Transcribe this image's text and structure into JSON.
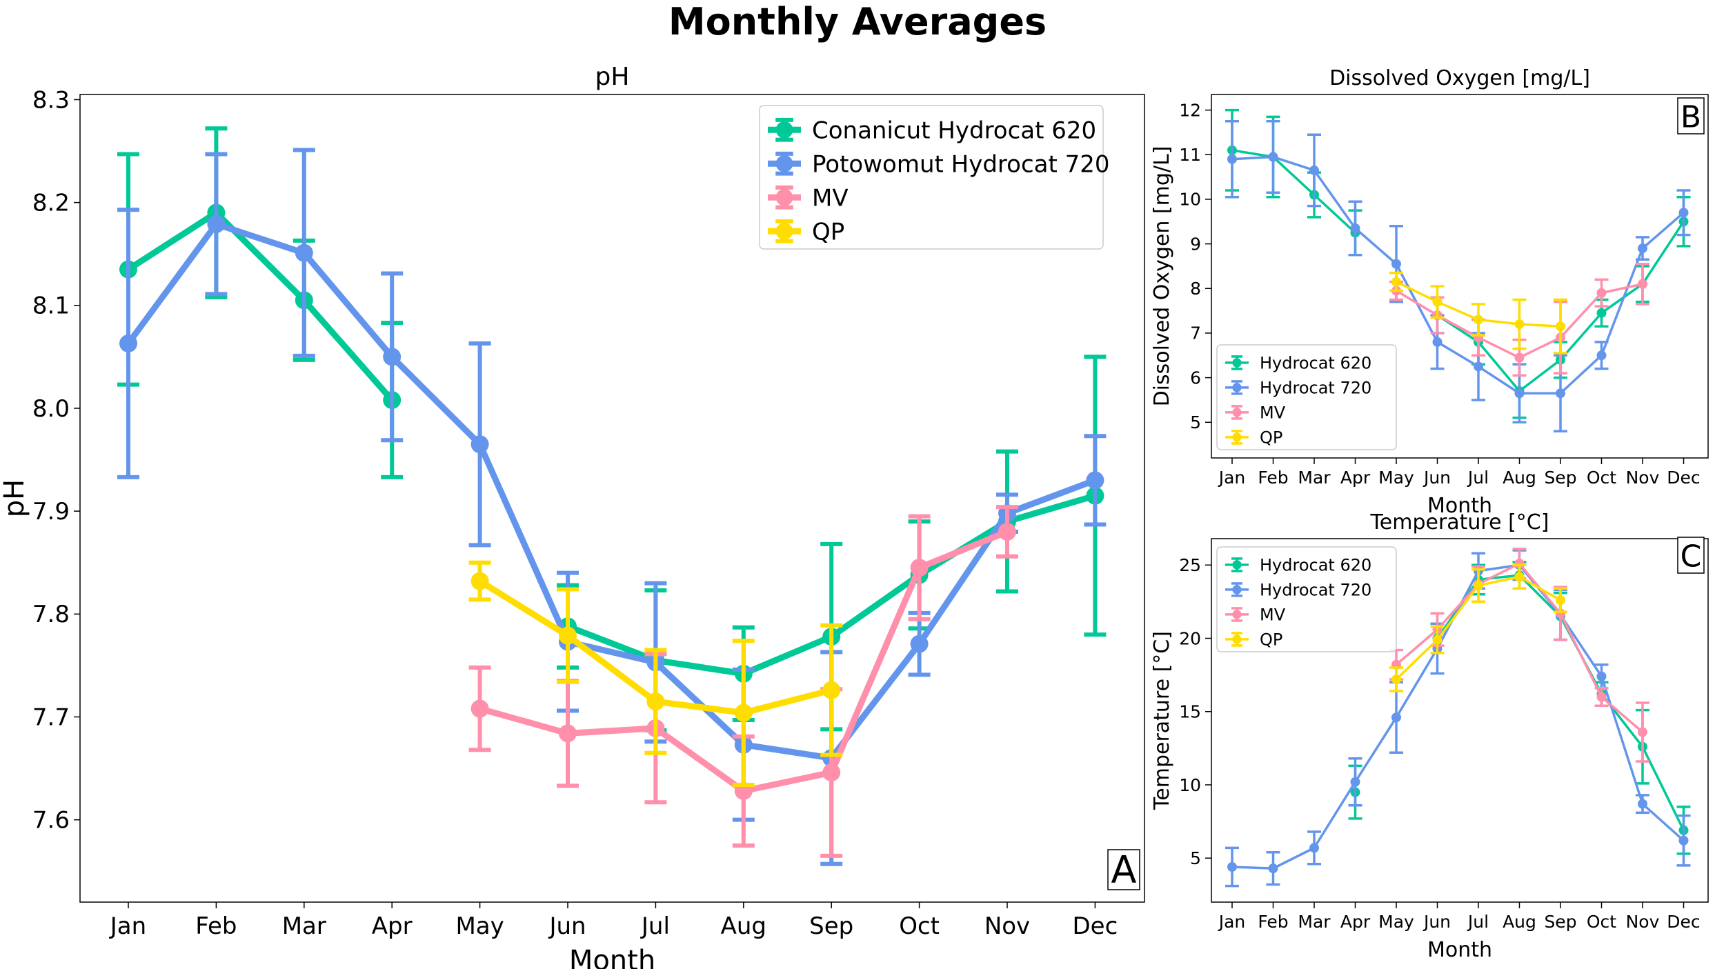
{
  "figure": {
    "title": "Monthly Averages"
  },
  "colors": {
    "Conanicut Hydrocat 620": "#00c896",
    "Potowomut Hydrocat 720": "#6495ed",
    "MV": "#ff8fab",
    "QP": "#ffdd00"
  },
  "chart_data": [
    {
      "id": "A",
      "type": "line",
      "title": "pH",
      "xlabel": "Month",
      "ylabel": "pH",
      "panel_label": "A",
      "ylim": [
        7.52,
        8.305
      ],
      "yticks": [
        "7.6",
        "7.7",
        "7.8",
        "7.9",
        "8.0",
        "8.1",
        "8.2",
        "8.3"
      ],
      "categories": [
        "Jan",
        "Feb",
        "Mar",
        "Apr",
        "May",
        "Jun",
        "Jul",
        "Aug",
        "Sep",
        "Oct",
        "Nov",
        "Dec"
      ],
      "legend_position": "top-right",
      "series": [
        {
          "name": "Conanicut Hydrocat 620",
          "color_key": "Conanicut Hydrocat 620",
          "values": [
            8.135,
            8.19,
            8.105,
            8.008,
            null,
            7.788,
            7.755,
            7.742,
            7.778,
            7.838,
            7.89,
            7.915
          ],
          "errors": [
            0.112,
            0.082,
            0.058,
            0.075,
            null,
            0.04,
            0.068,
            0.045,
            0.09,
            0.052,
            0.068,
            0.135
          ]
        },
        {
          "name": "Potowomut Hydrocat 720",
          "color_key": "Potowomut Hydrocat 720",
          "values": [
            8.063,
            8.179,
            8.151,
            8.05,
            7.965,
            7.773,
            7.753,
            7.673,
            7.66,
            7.771,
            7.898,
            7.93
          ],
          "errors": [
            0.13,
            0.068,
            0.1,
            0.081,
            0.098,
            0.067,
            0.077,
            0.073,
            0.103,
            0.03,
            0.018,
            0.043
          ]
        },
        {
          "name": "MV",
          "color_key": "MV",
          "values": [
            null,
            null,
            null,
            null,
            7.708,
            7.684,
            7.689,
            7.628,
            7.646,
            7.845,
            7.88,
            null
          ],
          "errors": [
            null,
            null,
            null,
            null,
            0.04,
            0.051,
            0.072,
            0.053,
            0.081,
            0.05,
            0.024,
            null
          ]
        },
        {
          "name": "QP",
          "color_key": "QP",
          "values": [
            null,
            null,
            null,
            null,
            7.832,
            7.779,
            7.715,
            7.704,
            7.726,
            null,
            null,
            null
          ],
          "errors": [
            null,
            null,
            null,
            null,
            0.018,
            0.045,
            0.05,
            0.07,
            0.063,
            null,
            null,
            null
          ]
        }
      ]
    },
    {
      "id": "B",
      "type": "line",
      "title": "Dissolved Oxygen [mg/L]",
      "xlabel": "Month",
      "ylabel": "Dissolved Oxygen [mg/L]",
      "panel_label": "B",
      "ylim": [
        4.2,
        12.35
      ],
      "yticks": [
        "5",
        "6",
        "7",
        "8",
        "9",
        "10",
        "11",
        "12"
      ],
      "categories": [
        "Jan",
        "Feb",
        "Mar",
        "Apr",
        "May",
        "Jun",
        "Jul",
        "Aug",
        "Sep",
        "Oct",
        "Nov",
        "Dec"
      ],
      "legend_position": "bottom-left",
      "series": [
        {
          "name": "Hydrocat 620",
          "color_key": "Conanicut Hydrocat 620",
          "values": [
            11.1,
            10.95,
            10.1,
            9.25,
            null,
            7.4,
            6.8,
            5.7,
            6.4,
            7.45,
            8.1,
            9.5
          ],
          "errors": [
            0.9,
            0.9,
            0.5,
            0.5,
            null,
            0.4,
            0.5,
            0.6,
            0.4,
            0.3,
            0.4,
            0.55
          ]
        },
        {
          "name": "Hydrocat 720",
          "color_key": "Potowomut Hydrocat 720",
          "values": [
            10.9,
            10.95,
            10.65,
            9.35,
            8.55,
            6.8,
            6.25,
            5.65,
            5.65,
            6.5,
            8.9,
            9.7
          ],
          "errors": [
            0.85,
            0.8,
            0.8,
            0.6,
            0.85,
            0.6,
            0.75,
            0.65,
            0.85,
            0.3,
            0.25,
            0.5
          ]
        },
        {
          "name": "MV",
          "color_key": "MV",
          "values": [
            null,
            null,
            null,
            null,
            7.95,
            7.4,
            6.9,
            6.45,
            6.9,
            7.9,
            8.1,
            null
          ],
          "errors": [
            null,
            null,
            null,
            null,
            0.2,
            0.4,
            0.4,
            0.4,
            0.8,
            0.3,
            0.45,
            null
          ]
        },
        {
          "name": "QP",
          "color_key": "QP",
          "values": [
            null,
            null,
            null,
            null,
            8.15,
            7.7,
            7.3,
            7.2,
            7.15,
            null,
            null,
            null
          ],
          "errors": [
            null,
            null,
            null,
            null,
            0.2,
            0.35,
            0.35,
            0.55,
            0.6,
            null,
            null,
            null
          ]
        }
      ]
    },
    {
      "id": "C",
      "type": "line",
      "title": "Temperature [°C]",
      "xlabel": "Month",
      "ylabel": "Temperature [°C]",
      "panel_label": "C",
      "ylim": [
        2.0,
        26.8
      ],
      "yticks": [
        "5",
        "10",
        "15",
        "20",
        "25"
      ],
      "categories": [
        "Jan",
        "Feb",
        "Mar",
        "Apr",
        "May",
        "Jun",
        "Jul",
        "Aug",
        "Sep",
        "Oct",
        "Nov",
        "Dec"
      ],
      "legend_position": "top-left",
      "series": [
        {
          "name": "Hydrocat 620",
          "color_key": "Conanicut Hydrocat 620",
          "values": [
            null,
            null,
            null,
            9.5,
            null,
            20.0,
            24.0,
            24.3,
            21.5,
            16.2,
            12.6,
            6.9
          ],
          "errors": [
            null,
            null,
            null,
            1.8,
            null,
            1.0,
            1.0,
            0.9,
            1.6,
            0.8,
            2.5,
            1.6
          ]
        },
        {
          "name": "Hydrocat 720",
          "color_key": "Potowomut Hydrocat 720",
          "values": [
            4.4,
            4.3,
            5.7,
            10.2,
            14.6,
            19.3,
            24.6,
            25.0,
            21.6,
            17.4,
            8.7,
            6.2
          ],
          "errors": [
            1.3,
            1.1,
            1.1,
            1.6,
            2.4,
            1.7,
            1.2,
            1.0,
            1.7,
            0.8,
            0.6,
            1.7
          ]
        },
        {
          "name": "MV",
          "color_key": "MV",
          "values": [
            null,
            null,
            null,
            null,
            18.2,
            20.6,
            23.7,
            25.1,
            21.7,
            16.0,
            13.6,
            null
          ],
          "errors": [
            null,
            null,
            null,
            null,
            1.0,
            1.1,
            1.2,
            1.0,
            1.8,
            0.6,
            2.0,
            null
          ]
        },
        {
          "name": "QP",
          "color_key": "QP",
          "values": [
            null,
            null,
            null,
            null,
            17.2,
            19.9,
            23.6,
            24.2,
            22.6,
            null,
            null,
            null
          ],
          "errors": [
            null,
            null,
            null,
            null,
            0.8,
            0.9,
            1.1,
            0.8,
            0.8,
            null,
            null,
            null
          ]
        }
      ]
    }
  ]
}
